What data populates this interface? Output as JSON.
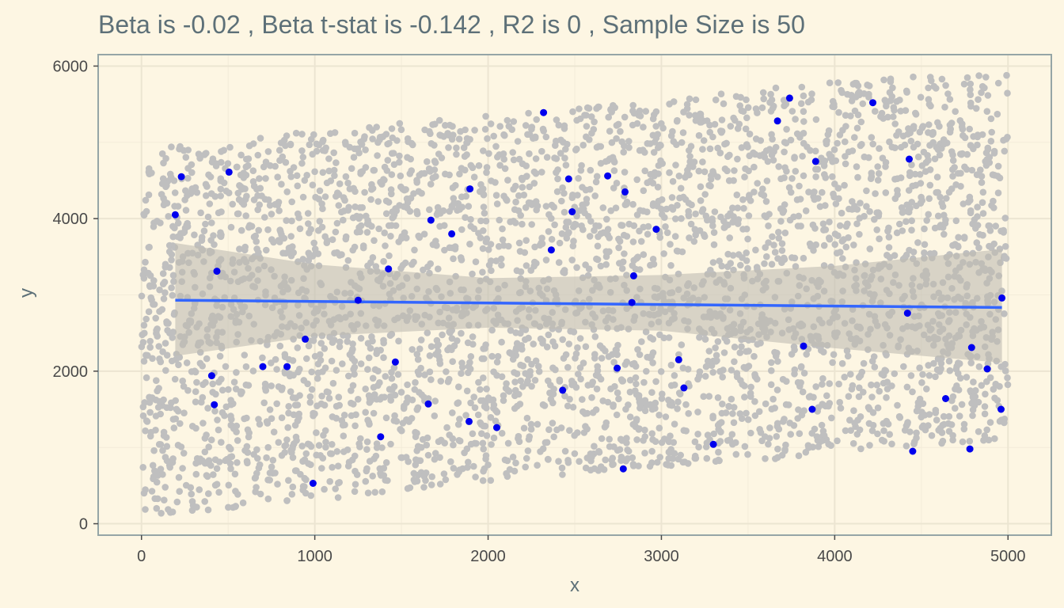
{
  "chart_data": {
    "type": "scatter",
    "title": "Beta is -0.02 , Beta t-stat is -0.142 , R2 is 0 , Sample Size is 50",
    "xlabel": "x",
    "ylabel": "y",
    "xlim": [
      -250,
      5250
    ],
    "ylim": [
      -150,
      6150
    ],
    "x_ticks": [
      0,
      1000,
      2000,
      3000,
      4000,
      5000
    ],
    "x_tick_labels": [
      "0",
      "1000",
      "2000",
      "3000",
      "4000",
      "5000"
    ],
    "y_ticks": [
      0,
      2000,
      4000,
      6000
    ],
    "y_tick_labels": [
      "0",
      "2000",
      "4000",
      "6000"
    ],
    "grid": true,
    "colors": {
      "background": "#fdf6e3",
      "grid_major": "#ece5d2",
      "grid_minor": "#f3ecd9",
      "panel_border": "#95a5a6",
      "population_points": "#bfbfbf",
      "sample_points": "#0000ee",
      "fit_line": "#3366ff",
      "ribbon": "#bfbcb3"
    },
    "population": {
      "approx_count": 4000,
      "x_range": [
        0,
        5000
      ],
      "y_lower_bound": [
        [
          0,
          100
        ],
        [
          1000,
          300
        ],
        [
          2000,
          550
        ],
        [
          3000,
          750
        ],
        [
          4000,
          900
        ],
        [
          5000,
          1100
        ]
      ],
      "y_upper_bound": [
        [
          0,
          4900
        ],
        [
          1000,
          5150
        ],
        [
          2000,
          5350
        ],
        [
          3000,
          5550
        ],
        [
          4000,
          5800
        ],
        [
          5000,
          5950
        ]
      ]
    },
    "sample": {
      "x": [
        195,
        230,
        405,
        420,
        435,
        505,
        700,
        840,
        945,
        990,
        1250,
        1380,
        1425,
        1465,
        1655,
        1670,
        1790,
        1890,
        1895,
        2050,
        2320,
        2365,
        2430,
        2465,
        2485,
        2690,
        2745,
        2780,
        2790,
        2830,
        2840,
        2970,
        3100,
        3130,
        3300,
        3670,
        3740,
        3820,
        3870,
        3890,
        4220,
        4420,
        4430,
        4450,
        4640,
        4780,
        4790,
        4880,
        4960,
        4965
      ],
      "y": [
        4050,
        4550,
        1940,
        1560,
        3310,
        4610,
        2060,
        2060,
        2420,
        530,
        2930,
        1140,
        3340,
        2120,
        1570,
        3980,
        3800,
        1340,
        4390,
        1260,
        5390,
        3590,
        1750,
        4520,
        4090,
        4560,
        2040,
        720,
        4350,
        2900,
        3250,
        3860,
        2150,
        1780,
        1040,
        5280,
        5580,
        2330,
        1500,
        4750,
        5520,
        2760,
        4780,
        950,
        1640,
        980,
        2310,
        2030,
        1500,
        2960
      ]
    },
    "fit": {
      "x": [
        195,
        4965
      ],
      "y": [
        2930,
        2835
      ]
    },
    "ribbon": {
      "x": [
        195,
        1000,
        2000,
        3000,
        4000,
        4965
      ],
      "upper": [
        3680,
        3400,
        3220,
        3260,
        3380,
        3600
      ],
      "lower": [
        2200,
        2460,
        2570,
        2530,
        2300,
        2110
      ]
    }
  }
}
